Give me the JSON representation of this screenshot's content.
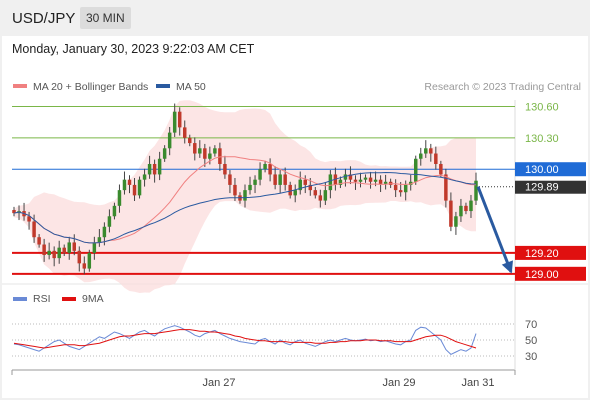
{
  "header": {
    "symbol": "USD/JPY",
    "timeframe": "30 MIN"
  },
  "datetime": "Monday, January 30, 2023 9:22:03 AM CET",
  "legend": {
    "items": [
      {
        "label": "MA 20 + Bollinger Bands",
        "color": "#f08080"
      },
      {
        "label": "MA 50",
        "color": "#2a5aa0"
      }
    ],
    "credit": "Research © 2023 Trading Central"
  },
  "rsi_legend": {
    "items": [
      {
        "label": "RSI",
        "color": "#6a8ad6"
      },
      {
        "label": "9MA",
        "color": "#e01010"
      }
    ]
  },
  "chart_data": [
    {
      "type": "candlestick",
      "title": "",
      "ylim": [
        128.96,
        130.7
      ],
      "x_tick_labels": [
        "Jan 27",
        "Jan 29",
        "Jan 31"
      ],
      "levels": [
        {
          "value": 130.6,
          "label": "130.60",
          "kind": "target",
          "color": "#7ab648"
        },
        {
          "value": 130.3,
          "label": "130.30",
          "kind": "target",
          "color": "#7ab648"
        },
        {
          "value": 130.0,
          "label": "130.00",
          "kind": "pivot",
          "color": "#1f6bd6"
        },
        {
          "value": 129.2,
          "label": "129.20",
          "kind": "support",
          "color": "#e01010"
        },
        {
          "value": 129.0,
          "label": "129.00",
          "kind": "support",
          "color": "#e01010"
        }
      ],
      "last_price": {
        "value": 129.89,
        "label": "129.89"
      },
      "closes": [
        129.58,
        129.6,
        129.55,
        129.5,
        129.35,
        129.28,
        129.18,
        129.22,
        129.15,
        129.25,
        129.2,
        129.3,
        129.22,
        129.1,
        129.05,
        129.2,
        129.3,
        129.35,
        129.45,
        129.55,
        129.65,
        129.8,
        129.9,
        129.85,
        129.75,
        129.9,
        129.95,
        130.05,
        129.95,
        130.1,
        130.2,
        130.35,
        130.55,
        130.4,
        130.3,
        130.25,
        130.15,
        130.2,
        130.1,
        130.15,
        130.2,
        130.05,
        129.95,
        129.85,
        129.75,
        129.7,
        129.8,
        129.85,
        129.9,
        130.0,
        130.05,
        129.95,
        129.85,
        129.95,
        129.85,
        129.75,
        129.8,
        129.9,
        129.85,
        129.8,
        129.75,
        129.7,
        129.8,
        129.95,
        129.85,
        129.9,
        129.95,
        129.9,
        129.88,
        129.9,
        129.92,
        129.88,
        129.9,
        129.86,
        129.88,
        129.85,
        129.8,
        129.78,
        129.85,
        129.88,
        130.1,
        130.15,
        130.2,
        130.15,
        130.05,
        129.95,
        129.7,
        129.45,
        129.55,
        129.65,
        129.6,
        129.7,
        129.89
      ],
      "projection": {
        "from": 129.89,
        "to": 129.0
      }
    },
    {
      "type": "line",
      "title": "",
      "ylim": [
        20,
        80
      ],
      "y_ticks": [
        70,
        50,
        30
      ],
      "series": [
        {
          "name": "RSI",
          "values": [
            45,
            44,
            42,
            40,
            38,
            36,
            40,
            44,
            48,
            50,
            46,
            42,
            40,
            38,
            42,
            46,
            50,
            54,
            52,
            56,
            60,
            58,
            55,
            52,
            56,
            60,
            62,
            58,
            55,
            60,
            64,
            66,
            68,
            66,
            63,
            60,
            56,
            54,
            58,
            60,
            62,
            58,
            55,
            52,
            50,
            48,
            47,
            46,
            45,
            50,
            52,
            48,
            45,
            50,
            46,
            44,
            48,
            50,
            46,
            44,
            42,
            45,
            48,
            50,
            48,
            50,
            52,
            50,
            49,
            50,
            51,
            49,
            50,
            48,
            49,
            47,
            45,
            44,
            48,
            50,
            62,
            66,
            65,
            60,
            55,
            50,
            38,
            32,
            35,
            38,
            36,
            40,
            58
          ]
        },
        {
          "name": "9MA",
          "values": [
            46,
            45,
            44,
            43,
            42,
            41,
            40,
            41,
            42,
            43,
            44,
            44,
            44,
            43,
            43,
            44,
            45,
            46,
            48,
            50,
            52,
            54,
            55,
            55,
            56,
            57,
            58,
            58,
            58,
            59,
            60,
            61,
            62,
            63,
            63,
            63,
            62,
            61,
            61,
            60,
            60,
            59,
            58,
            57,
            55,
            54,
            52,
            51,
            50,
            49,
            49,
            48,
            48,
            48,
            48,
            47,
            47,
            47,
            47,
            47,
            46,
            46,
            46,
            47,
            47,
            48,
            48,
            49,
            49,
            49,
            50,
            50,
            50,
            49,
            49,
            49,
            48,
            48,
            48,
            48,
            50,
            52,
            54,
            55,
            56,
            56,
            54,
            51,
            48,
            46,
            44,
            42,
            40
          ]
        }
      ]
    }
  ]
}
